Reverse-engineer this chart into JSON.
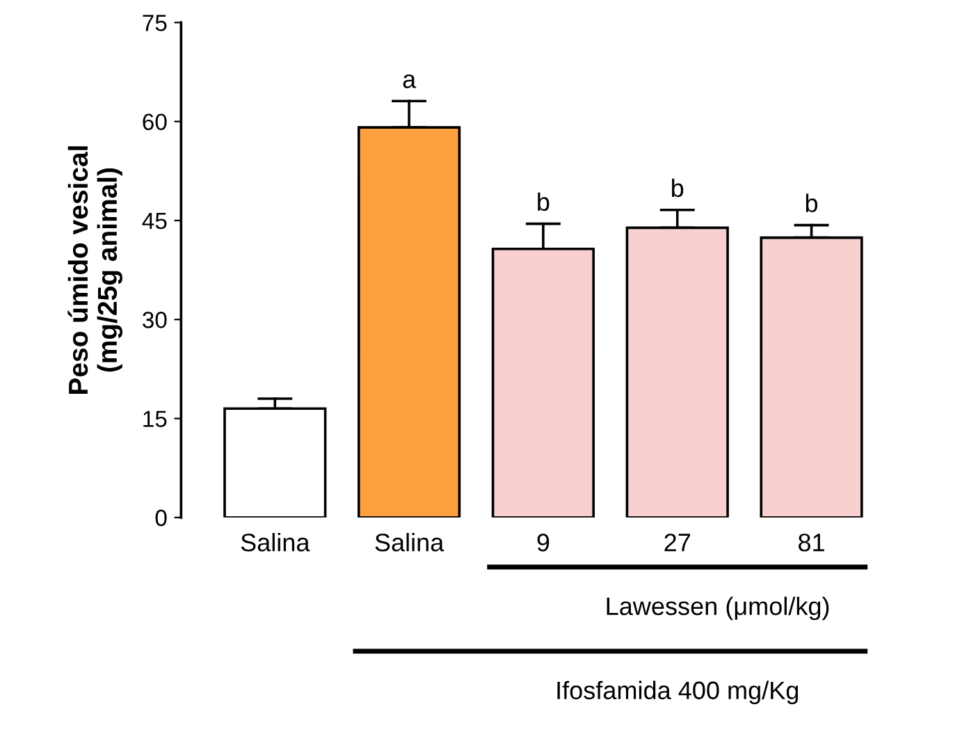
{
  "chart_data": {
    "type": "bar",
    "ylabel": "Peso úmido vesical\n(mg/25g animal)",
    "categories": [
      "Salina",
      "Salina",
      "9",
      "27",
      "81"
    ],
    "values": [
      16.5,
      59.1,
      40.7,
      43.9,
      42.4
    ],
    "errors": [
      [
        16.5,
        18.0
      ],
      [
        59.1,
        63.1
      ],
      [
        40.7,
        44.5
      ],
      [
        43.9,
        46.6
      ],
      [
        42.4,
        44.3
      ]
    ],
    "colors": [
      "#ffffff",
      "#ffa040",
      "#f9d0d0",
      "#f9d0d0",
      "#f9d0d0"
    ],
    "value_labels": [
      null,
      "a",
      "b",
      "b",
      "b"
    ],
    "ylim": [
      0,
      75
    ],
    "yticks": [
      0,
      15,
      30,
      45,
      60,
      75
    ],
    "grid": false,
    "annotations": [
      "Lawessen (μmol/kg)",
      "Ifosfamida 400 mg/Kg"
    ]
  }
}
